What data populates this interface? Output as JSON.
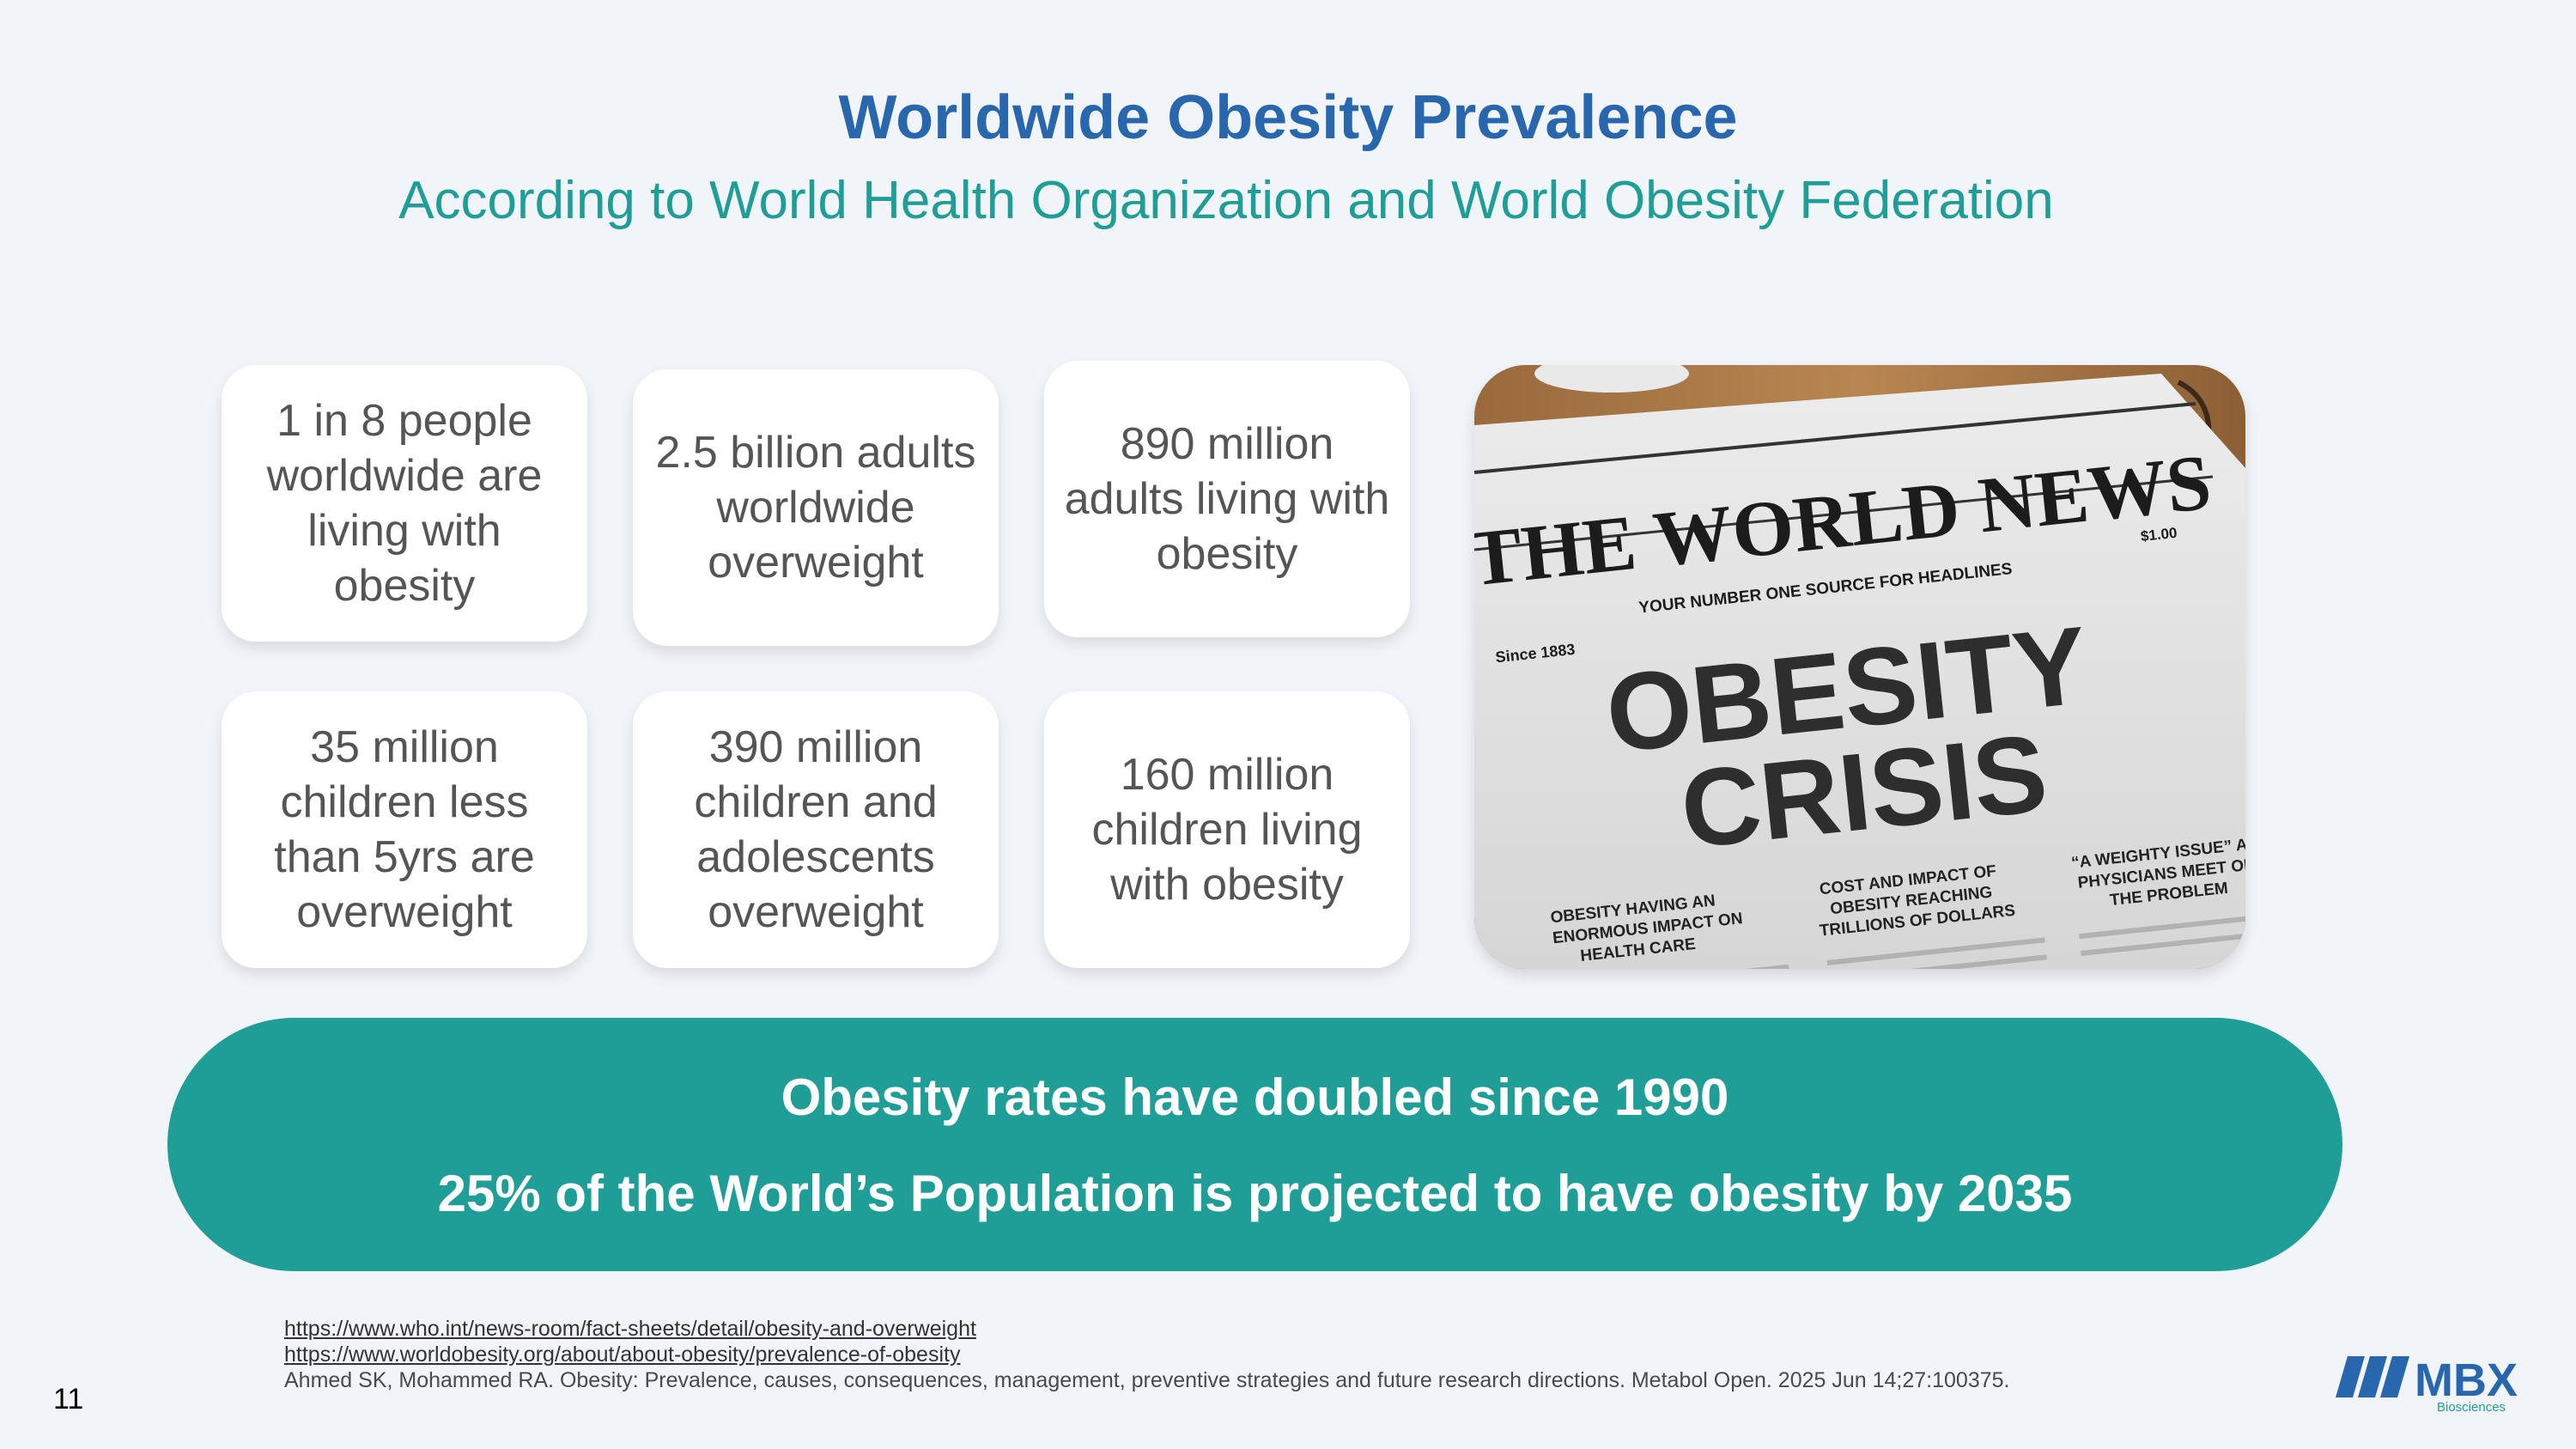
{
  "title": "Worldwide Obesity Prevalence",
  "subtitle": "According to World Health Organization and World Obesity Federation",
  "cards": [
    {
      "text": "1 in 8 people worldwide are living with obesity"
    },
    {
      "text": "2.5 billion adults worldwide overweight"
    },
    {
      "text": "890 million adults living with obesity"
    },
    {
      "text": "35 million children less than 5yrs are overweight"
    },
    {
      "text": "390 million children and adolescents overweight"
    },
    {
      "text": "160 million children living with obesity"
    }
  ],
  "newspaper": {
    "masthead": "THE WORLD NEWS",
    "tagline": "YOUR NUMBER ONE SOURCE FOR HEADLINES",
    "since": "Since 1883",
    "price": "$1.00",
    "headline1": "OBESITY",
    "headline2": "CRISIS",
    "col1": [
      "OBESITY HAVING AN",
      "ENORMOUS IMPACT ON",
      "HEALTH CARE"
    ],
    "col2": [
      "COST AND IMPACT OF",
      "OBESITY REACHING",
      "TRILLIONS OF DOLLARS"
    ],
    "col3": [
      "“A WEIGHTY ISSUE” AS",
      "PHYSICIANS MEET ON",
      "THE PROBLEM"
    ]
  },
  "banner": {
    "line1": "Obesity rates have doubled since 1990",
    "line2": "25% of the World’s Population is projected to have obesity by 2035"
  },
  "references": {
    "link1": "https://www.who.int/news-room/fact-sheets/detail/obesity-and-overweight",
    "link2": "https://www.worldobesity.org/about/about-obesity/prevalence-of-obesity",
    "citation": "Ahmed SK, Mohammed RA. Obesity: Prevalence, causes, consequences, management, preventive strategies and future research directions. Metabol Open. 2025 Jun 14;27:100375."
  },
  "page_number": "11",
  "logo": {
    "name": "MBX",
    "sub": "Biosciences"
  },
  "colors": {
    "title": "#2866ad",
    "accent": "#1f9e97",
    "background": "#f1f4f9"
  }
}
